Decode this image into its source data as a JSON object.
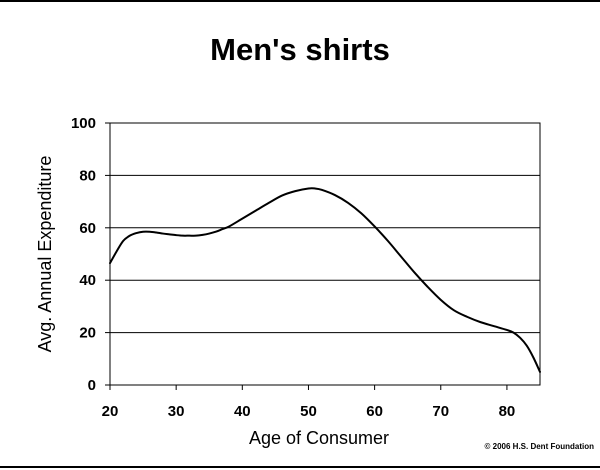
{
  "chart_data": {
    "type": "line",
    "title": "Men's shirts",
    "xlabel": "Age of Consumer",
    "ylabel": "Avg. Annual Expenditure",
    "xlim": [
      20,
      85
    ],
    "ylim": [
      0,
      100
    ],
    "xticks": [
      20,
      30,
      40,
      50,
      60,
      70,
      80
    ],
    "yticks": [
      0,
      20,
      40,
      60,
      80,
      100
    ],
    "grid": "horizontal",
    "legend": "none",
    "line_color": "#000000",
    "series": [
      {
        "x": [
          20,
          21,
          22,
          23,
          24,
          25,
          26,
          27,
          28,
          29,
          30,
          31,
          32,
          33,
          34,
          35,
          36,
          37,
          38,
          40,
          42,
          44,
          46,
          48,
          50,
          51,
          52,
          54,
          56,
          58,
          60,
          62,
          64,
          66,
          68,
          70,
          72,
          74,
          76,
          78,
          80,
          81,
          82,
          83,
          84,
          85
        ],
        "values": [
          46.5,
          51,
          55,
          57,
          58,
          58.5,
          58.5,
          58.2,
          57.8,
          57.5,
          57.2,
          57,
          57,
          57,
          57.3,
          57.8,
          58.5,
          59.5,
          60.5,
          63.5,
          66.5,
          69.5,
          72.3,
          74,
          75,
          75,
          74.5,
          72.5,
          69.5,
          65.5,
          60.5,
          55,
          49,
          43,
          37.5,
          32.5,
          28.5,
          26,
          24,
          22.5,
          21,
          20,
          18,
          15,
          10.5,
          5
        ]
      }
    ]
  },
  "copyright": "© 2006 H.S. Dent Foundation"
}
